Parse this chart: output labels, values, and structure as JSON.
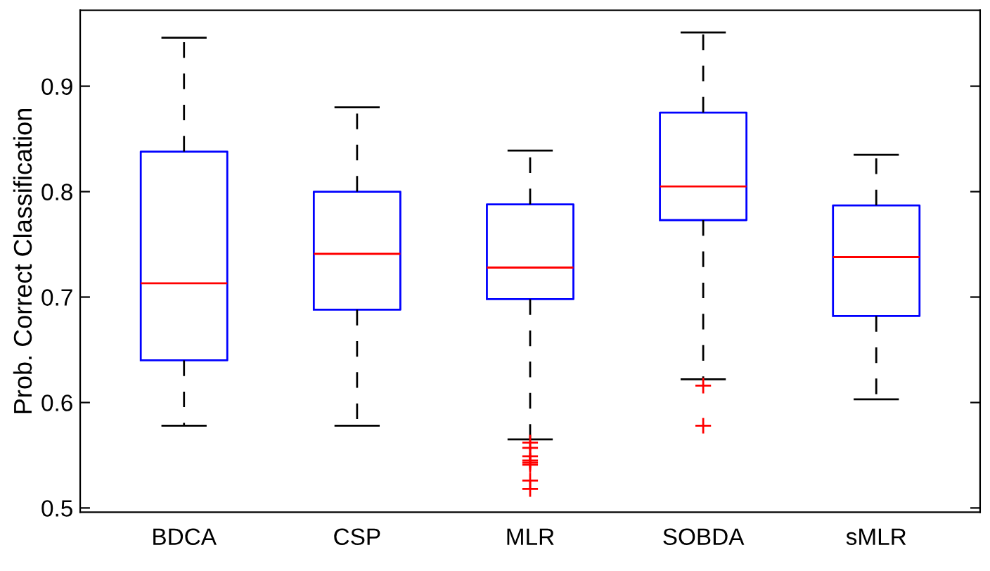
{
  "chart_data": {
    "type": "box",
    "ylabel": "Prob. Correct Classification",
    "categories": [
      "BDCA",
      "CSP",
      "MLR",
      "SOBDA",
      "sMLR"
    ],
    "boxes": [
      {
        "low": 0.578,
        "q1": 0.64,
        "median": 0.713,
        "q3": 0.838,
        "high": 0.946
      },
      {
        "low": 0.578,
        "q1": 0.688,
        "median": 0.741,
        "q3": 0.8,
        "high": 0.88
      },
      {
        "low": 0.565,
        "q1": 0.698,
        "median": 0.728,
        "q3": 0.788,
        "high": 0.839,
        "outliers": [
          0.562,
          0.557,
          0.549,
          0.545,
          0.543,
          0.541,
          0.526,
          0.518
        ]
      },
      {
        "low": 0.622,
        "q1": 0.773,
        "median": 0.805,
        "q3": 0.875,
        "high": 0.951,
        "outliers": [
          0.616,
          0.578
        ]
      },
      {
        "low": 0.603,
        "q1": 0.682,
        "median": 0.738,
        "q3": 0.787,
        "high": 0.835
      }
    ],
    "color": "#0000ff",
    "ylim": [
      0.496,
      0.972
    ],
    "yticks": [
      0.5,
      0.6,
      0.7,
      0.8,
      0.9
    ],
    "grid": false,
    "legend": false
  }
}
